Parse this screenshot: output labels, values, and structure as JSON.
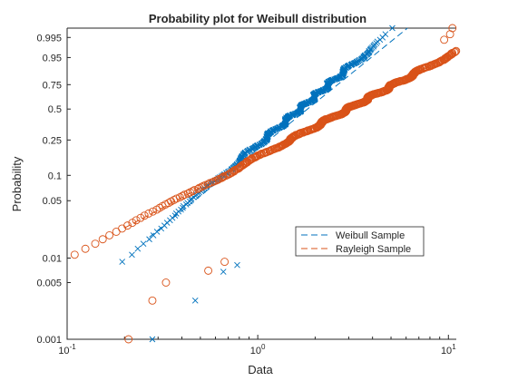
{
  "chart_data": {
    "type": "scatter",
    "title": "Probability plot for Weibull distribution",
    "xlabel": "Data",
    "ylabel": "Probability",
    "x_scale": "log",
    "y_scale": "weibull-probability",
    "xlim": [
      0.1,
      11
    ],
    "ylim": [
      0.001,
      0.999
    ],
    "x_ticks": [
      {
        "value": 0.1,
        "base": "10",
        "exp": "-1"
      },
      {
        "value": 1,
        "base": "10",
        "exp": "0"
      },
      {
        "value": 10,
        "base": "10",
        "exp": "1"
      }
    ],
    "y_ticks": [
      {
        "value": 0.001,
        "label": "0.001"
      },
      {
        "value": 0.005,
        "label": "0.005"
      },
      {
        "value": 0.01,
        "label": "0.01"
      },
      {
        "value": 0.05,
        "label": "0.05"
      },
      {
        "value": 0.1,
        "label": "0.1"
      },
      {
        "value": 0.25,
        "label": "0.25"
      },
      {
        "value": 0.5,
        "label": "0.5"
      },
      {
        "value": 0.75,
        "label": "0.75"
      },
      {
        "value": 0.95,
        "label": "0.95"
      },
      {
        "value": 0.995,
        "label": "0.995"
      }
    ],
    "grid": false,
    "legend_position": "center-right",
    "series": [
      {
        "name": "Weibull Sample",
        "marker": "x",
        "color": "#0072BD",
        "sample_size": 500,
        "fitted_line": {
          "scale": 2.0,
          "shape": 2.0,
          "style": "dashed"
        },
        "lowest_points": [
          {
            "x": 0.28,
            "p": 0.001
          },
          {
            "x": 0.47,
            "p": 0.003
          },
          {
            "x": 0.66,
            "p": 0.0068
          },
          {
            "x": 0.78,
            "p": 0.0082
          }
        ]
      },
      {
        "name": "Rayleigh Sample",
        "marker": "o",
        "color": "#D95319",
        "sample_size": 500,
        "fitted_line": {
          "scale": 4.0,
          "shape": 1.25,
          "style": "dashed"
        },
        "lowest_points": [
          {
            "x": 0.21,
            "p": 0.001
          },
          {
            "x": 0.28,
            "p": 0.003
          },
          {
            "x": 0.33,
            "p": 0.005
          },
          {
            "x": 0.55,
            "p": 0.007
          },
          {
            "x": 0.67,
            "p": 0.009
          }
        ],
        "highest_points": [
          {
            "x": 9.5,
            "p": 0.993
          },
          {
            "x": 10.2,
            "p": 0.997
          },
          {
            "x": 10.5,
            "p": 0.999
          }
        ]
      }
    ]
  }
}
